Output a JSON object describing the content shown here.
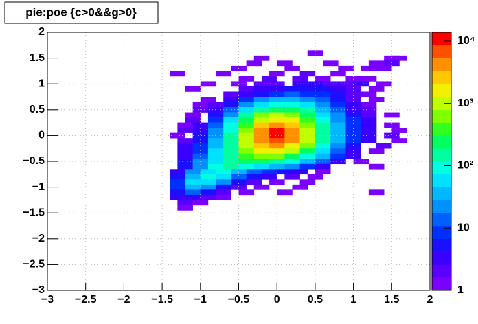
{
  "chart_data": {
    "type": "heatmap",
    "title": "pie:poe {c>0&&g>0}",
    "xlim": [
      -3,
      2
    ],
    "ylim": [
      -3,
      2
    ],
    "zlim": [
      1,
      13900
    ],
    "zlog": true,
    "grid": true,
    "xticks": [
      {
        "value": -3,
        "label": "−3"
      },
      {
        "value": -2.5,
        "label": "−2.5"
      },
      {
        "value": -2,
        "label": "−2"
      },
      {
        "value": -1.5,
        "label": "−1.5"
      },
      {
        "value": -1,
        "label": "−1"
      },
      {
        "value": -0.5,
        "label": "−0.5"
      },
      0,
      0.5,
      1,
      1.5,
      2
    ],
    "yticks": [
      {
        "value": -3,
        "label": "−3"
      },
      {
        "value": -2.5,
        "label": "−2.5"
      },
      {
        "value": -2,
        "label": "−2"
      },
      {
        "value": -1.5,
        "label": "−1.5"
      },
      {
        "value": -1,
        "label": "−1"
      },
      {
        "value": -0.5,
        "label": "−0.5"
      },
      0,
      0.5,
      1,
      1.5,
      2
    ],
    "zticks": [
      1,
      10,
      {
        "value": 100,
        "label": "10²"
      },
      {
        "value": 1000,
        "label": "10³"
      },
      {
        "value": 10000,
        "label": "10⁴"
      }
    ],
    "palette": [
      "#7a00ff",
      "#5a00ff",
      "#3a00ff",
      "#1a10ff",
      "#0030ff",
      "#0060ff",
      "#0090ff",
      "#00b8ff",
      "#00e0ff",
      "#00ffe0",
      "#00ffa0",
      "#00ff60",
      "#30ff20",
      "#80ff00",
      "#c0ff00",
      "#f0f000",
      "#ffc800",
      "#ff9000",
      "#ff5000",
      "#ff0000"
    ],
    "cells": [
      [
        0.5,
        1.6,
        1
      ],
      [
        -0.2,
        1.5,
        1
      ],
      [
        1.5,
        1.5,
        1
      ],
      [
        1.6,
        1.5,
        1
      ],
      [
        -0.3,
        1.4,
        1
      ],
      [
        0.1,
        1.4,
        1
      ],
      [
        0.7,
        1.4,
        1
      ],
      [
        1.3,
        1.4,
        1
      ],
      [
        1.5,
        1.4,
        2
      ],
      [
        -0.5,
        1.3,
        1
      ],
      [
        0.2,
        1.3,
        1
      ],
      [
        0.9,
        1.3,
        1
      ],
      [
        1.2,
        1.3,
        1
      ],
      [
        1.4,
        1.3,
        1
      ],
      [
        -1.3,
        1.2,
        1
      ],
      [
        -0.7,
        1.2,
        1
      ],
      [
        0,
        1.2,
        1
      ],
      [
        0.4,
        1.2,
        2
      ],
      [
        0.8,
        1.2,
        1
      ],
      [
        -0.4,
        1.1,
        1
      ],
      [
        -0.1,
        1.1,
        2
      ],
      [
        0.3,
        1.1,
        2
      ],
      [
        0.6,
        1.1,
        1
      ],
      [
        1.0,
        1.1,
        1
      ],
      [
        1.2,
        1.1,
        1
      ],
      [
        -0.9,
        1.0,
        1
      ],
      [
        -0.5,
        1.0,
        1
      ],
      [
        -0.2,
        1.0,
        2
      ],
      [
        0,
        1.0,
        2
      ],
      [
        0.3,
        1.0,
        3
      ],
      [
        0.5,
        1.0,
        3
      ],
      [
        0.7,
        1.0,
        2
      ],
      [
        0.9,
        1.0,
        2
      ],
      [
        1.1,
        1.0,
        3
      ],
      [
        1.4,
        1.0,
        1
      ],
      [
        -1.1,
        0.9,
        1
      ],
      [
        -0.4,
        0.9,
        2
      ],
      [
        -0.2,
        0.9,
        3
      ],
      [
        0,
        0.9,
        4
      ],
      [
        0.2,
        0.9,
        5
      ],
      [
        0.4,
        0.9,
        6
      ],
      [
        0.6,
        0.9,
        5
      ],
      [
        0.8,
        0.9,
        4
      ],
      [
        1.0,
        0.9,
        2
      ],
      [
        1.3,
        0.9,
        1
      ],
      [
        -0.6,
        0.8,
        2
      ],
      [
        -0.4,
        0.8,
        3
      ],
      [
        -0.2,
        0.8,
        6
      ],
      [
        0,
        0.8,
        10
      ],
      [
        0.2,
        0.8,
        12
      ],
      [
        0.4,
        0.8,
        10
      ],
      [
        0.6,
        0.8,
        8
      ],
      [
        0.8,
        0.8,
        5
      ],
      [
        1.0,
        0.8,
        2
      ],
      [
        1.2,
        0.8,
        1
      ],
      [
        -0.9,
        0.7,
        1
      ],
      [
        -0.6,
        0.7,
        3
      ],
      [
        -0.4,
        0.7,
        8
      ],
      [
        -0.2,
        0.7,
        20
      ],
      [
        0,
        0.7,
        35
      ],
      [
        0.2,
        0.7,
        40
      ],
      [
        0.4,
        0.7,
        25
      ],
      [
        0.6,
        0.7,
        12
      ],
      [
        0.8,
        0.7,
        5
      ],
      [
        1.0,
        0.7,
        2
      ],
      [
        1.3,
        0.7,
        1
      ],
      [
        -1.0,
        0.6,
        1
      ],
      [
        -0.8,
        0.6,
        2
      ],
      [
        -0.6,
        0.6,
        6
      ],
      [
        -0.4,
        0.6,
        20
      ],
      [
        -0.2,
        0.6,
        60
      ],
      [
        0,
        0.6,
        100
      ],
      [
        0.2,
        0.6,
        90
      ],
      [
        0.4,
        0.6,
        50
      ],
      [
        0.6,
        0.6,
        20
      ],
      [
        0.8,
        0.6,
        8
      ],
      [
        1.0,
        0.6,
        3
      ],
      [
        1.2,
        0.6,
        1
      ],
      [
        -1.0,
        0.5,
        2
      ],
      [
        -0.8,
        0.5,
        4
      ],
      [
        -0.6,
        0.5,
        12
      ],
      [
        -0.4,
        0.5,
        50
      ],
      [
        -0.2,
        0.5,
        180
      ],
      [
        0,
        0.5,
        300
      ],
      [
        0.2,
        0.5,
        250
      ],
      [
        0.4,
        0.5,
        120
      ],
      [
        0.6,
        0.5,
        40
      ],
      [
        0.8,
        0.5,
        12
      ],
      [
        1.0,
        0.5,
        4
      ],
      [
        1.2,
        0.5,
        2
      ],
      [
        -1.1,
        0.4,
        1
      ],
      [
        -0.8,
        0.4,
        6
      ],
      [
        -0.6,
        0.4,
        25
      ],
      [
        -0.4,
        0.4,
        120
      ],
      [
        -0.2,
        0.4,
        500
      ],
      [
        0,
        0.4,
        900
      ],
      [
        0.2,
        0.4,
        600
      ],
      [
        0.4,
        0.4,
        250
      ],
      [
        0.6,
        0.4,
        70
      ],
      [
        0.8,
        0.4,
        20
      ],
      [
        1.0,
        0.4,
        6
      ],
      [
        1.2,
        0.4,
        2
      ],
      [
        1.5,
        0.4,
        1
      ],
      [
        -1.1,
        0.3,
        2
      ],
      [
        -0.8,
        0.3,
        10
      ],
      [
        -0.6,
        0.3,
        50
      ],
      [
        -0.4,
        0.3,
        250
      ],
      [
        -0.2,
        0.3,
        1200
      ],
      [
        0,
        0.3,
        2000
      ],
      [
        0.2,
        0.3,
        1300
      ],
      [
        0.4,
        0.3,
        450
      ],
      [
        0.6,
        0.3,
        100
      ],
      [
        0.8,
        0.3,
        25
      ],
      [
        1.0,
        0.3,
        8
      ],
      [
        1.2,
        0.3,
        3
      ],
      [
        -1.2,
        0.2,
        1
      ],
      [
        -1.0,
        0.2,
        3
      ],
      [
        -0.8,
        0.2,
        15
      ],
      [
        -0.6,
        0.2,
        80
      ],
      [
        -0.4,
        0.2,
        450
      ],
      [
        -0.2,
        0.2,
        2500
      ],
      [
        0,
        0.2,
        4500
      ],
      [
        0.2,
        0.2,
        2500
      ],
      [
        0.4,
        0.2,
        700
      ],
      [
        0.6,
        0.2,
        140
      ],
      [
        0.8,
        0.2,
        30
      ],
      [
        1.0,
        0.2,
        8
      ],
      [
        1.2,
        0.2,
        3
      ],
      [
        1.5,
        0.2,
        1
      ],
      [
        -1.2,
        0.1,
        2
      ],
      [
        -1.0,
        0.1,
        4
      ],
      [
        -0.8,
        0.1,
        20
      ],
      [
        -0.6,
        0.1,
        110
      ],
      [
        -0.4,
        0.1,
        700
      ],
      [
        -0.2,
        0.1,
        4000
      ],
      [
        0,
        0.1,
        9000
      ],
      [
        0.2,
        0.1,
        3800
      ],
      [
        0.4,
        0.1,
        900
      ],
      [
        0.6,
        0.1,
        160
      ],
      [
        0.8,
        0.1,
        35
      ],
      [
        1.0,
        0.1,
        10
      ],
      [
        1.2,
        0.1,
        4
      ],
      [
        1.6,
        0.1,
        1
      ],
      [
        -1.3,
        0,
        1
      ],
      [
        -1.0,
        0,
        5
      ],
      [
        -0.8,
        0,
        25
      ],
      [
        -0.6,
        0,
        140
      ],
      [
        -0.4,
        0,
        900
      ],
      [
        -0.2,
        0,
        5000
      ],
      [
        0,
        0,
        13000
      ],
      [
        0.2,
        0,
        4500
      ],
      [
        0.4,
        0,
        1000
      ],
      [
        0.6,
        0,
        170
      ],
      [
        0.8,
        0,
        35
      ],
      [
        1.0,
        0,
        10
      ],
      [
        1.2,
        0,
        4
      ],
      [
        1.5,
        0,
        2
      ],
      [
        -1.2,
        -0.1,
        2
      ],
      [
        -1.0,
        -0.1,
        6
      ],
      [
        -0.8,
        -0.1,
        30
      ],
      [
        -0.6,
        -0.1,
        160
      ],
      [
        -0.4,
        -0.1,
        900
      ],
      [
        -0.2,
        -0.1,
        4200
      ],
      [
        0,
        -0.1,
        8000
      ],
      [
        0.2,
        -0.1,
        3500
      ],
      [
        0.4,
        -0.1,
        800
      ],
      [
        0.6,
        -0.1,
        140
      ],
      [
        0.8,
        -0.1,
        30
      ],
      [
        1.0,
        -0.1,
        8
      ],
      [
        1.2,
        -0.1,
        3
      ],
      [
        1.6,
        -0.1,
        1
      ],
      [
        -1.2,
        -0.2,
        3
      ],
      [
        -1.0,
        -0.2,
        8
      ],
      [
        -0.8,
        -0.2,
        40
      ],
      [
        -0.6,
        -0.2,
        170
      ],
      [
        -0.4,
        -0.2,
        800
      ],
      [
        -0.2,
        -0.2,
        2800
      ],
      [
        0,
        -0.2,
        4000
      ],
      [
        0.2,
        -0.2,
        2000
      ],
      [
        0.4,
        -0.2,
        500
      ],
      [
        0.6,
        -0.2,
        100
      ],
      [
        0.8,
        -0.2,
        22
      ],
      [
        1.0,
        -0.2,
        6
      ],
      [
        1.4,
        -0.2,
        2
      ],
      [
        -1.2,
        -0.3,
        3
      ],
      [
        -1.0,
        -0.3,
        10
      ],
      [
        -0.8,
        -0.3,
        50
      ],
      [
        -0.6,
        -0.3,
        180
      ],
      [
        -0.4,
        -0.3,
        600
      ],
      [
        -0.2,
        -0.3,
        1400
      ],
      [
        0,
        -0.3,
        1600
      ],
      [
        0.2,
        -0.3,
        900
      ],
      [
        0.4,
        -0.3,
        250
      ],
      [
        0.6,
        -0.3,
        60
      ],
      [
        0.8,
        -0.3,
        15
      ],
      [
        1.0,
        -0.3,
        4
      ],
      [
        1.3,
        -0.3,
        1
      ],
      [
        -1.2,
        -0.4,
        4
      ],
      [
        -1.0,
        -0.4,
        14
      ],
      [
        -0.8,
        -0.4,
        60
      ],
      [
        -0.6,
        -0.4,
        180
      ],
      [
        -0.4,
        -0.4,
        400
      ],
      [
        -0.2,
        -0.4,
        600
      ],
      [
        0,
        -0.4,
        550
      ],
      [
        0.2,
        -0.4,
        300
      ],
      [
        0.4,
        -0.4,
        100
      ],
      [
        0.6,
        -0.4,
        30
      ],
      [
        0.8,
        -0.4,
        8
      ],
      [
        1.0,
        -0.4,
        3
      ],
      [
        -1.2,
        -0.5,
        5
      ],
      [
        -1.0,
        -0.5,
        18
      ],
      [
        -0.8,
        -0.5,
        70
      ],
      [
        -0.6,
        -0.5,
        160
      ],
      [
        -0.4,
        -0.5,
        220
      ],
      [
        -0.2,
        -0.5,
        200
      ],
      [
        0,
        -0.5,
        150
      ],
      [
        0.2,
        -0.5,
        80
      ],
      [
        0.4,
        -0.5,
        35
      ],
      [
        0.6,
        -0.5,
        12
      ],
      [
        0.8,
        -0.5,
        4
      ],
      [
        1.1,
        -0.5,
        1
      ],
      [
        -1.2,
        -0.6,
        6
      ],
      [
        -1.0,
        -0.6,
        25
      ],
      [
        -0.8,
        -0.6,
        80
      ],
      [
        -0.6,
        -0.6,
        120
      ],
      [
        -0.4,
        -0.6,
        90
      ],
      [
        -0.2,
        -0.6,
        50
      ],
      [
        0,
        -0.6,
        35
      ],
      [
        0.2,
        -0.6,
        18
      ],
      [
        0.4,
        -0.6,
        8
      ],
      [
        0.6,
        -0.6,
        4
      ],
      [
        1.3,
        -0.6,
        1
      ],
      [
        -1.3,
        -0.7,
        4
      ],
      [
        -1.1,
        -0.7,
        20
      ],
      [
        -0.9,
        -0.7,
        70
      ],
      [
        -0.7,
        -0.7,
        90
      ],
      [
        -0.5,
        -0.7,
        40
      ],
      [
        -0.3,
        -0.7,
        15
      ],
      [
        -0.1,
        -0.7,
        8
      ],
      [
        0.1,
        -0.7,
        5
      ],
      [
        0.3,
        -0.7,
        3
      ],
      [
        0.6,
        -0.7,
        1
      ],
      [
        -1.3,
        -0.8,
        6
      ],
      [
        -1.1,
        -0.8,
        35
      ],
      [
        -0.9,
        -0.8,
        80
      ],
      [
        -0.7,
        -0.8,
        50
      ],
      [
        -0.5,
        -0.8,
        15
      ],
      [
        -0.3,
        -0.8,
        5
      ],
      [
        -0.1,
        -0.8,
        3
      ],
      [
        0.2,
        -0.8,
        2
      ],
      [
        0.5,
        -0.8,
        1
      ],
      [
        -1.3,
        -0.9,
        8
      ],
      [
        -1.1,
        -0.9,
        50
      ],
      [
        -0.9,
        -0.9,
        60
      ],
      [
        -0.7,
        -0.9,
        20
      ],
      [
        -0.5,
        -0.9,
        5
      ],
      [
        -0.3,
        -0.9,
        2
      ],
      [
        0,
        -0.9,
        1
      ],
      [
        0.4,
        -0.9,
        1
      ],
      [
        -1.3,
        -1.0,
        10
      ],
      [
        -1.1,
        -1.0,
        40
      ],
      [
        -0.9,
        -1.0,
        25
      ],
      [
        -0.7,
        -1.0,
        6
      ],
      [
        -0.5,
        -1.0,
        2
      ],
      [
        -0.2,
        -1.0,
        1
      ],
      [
        0.3,
        -1.0,
        1
      ],
      [
        -1.3,
        -1.1,
        6
      ],
      [
        -1.1,
        -1.1,
        15
      ],
      [
        -0.9,
        -1.1,
        6
      ],
      [
        -0.7,
        -1.1,
        2
      ],
      [
        -0.4,
        -1.1,
        1
      ],
      [
        0.1,
        -1.1,
        1
      ],
      [
        1.3,
        -1.1,
        1
      ],
      [
        -1.3,
        -1.2,
        3
      ],
      [
        -1.1,
        -1.2,
        4
      ],
      [
        -0.9,
        -1.2,
        2
      ],
      [
        -0.7,
        -1.2,
        1
      ],
      [
        -1.2,
        -1.3,
        2
      ],
      [
        -1.0,
        -1.3,
        1
      ],
      [
        -1.2,
        -1.4,
        1
      ]
    ]
  }
}
